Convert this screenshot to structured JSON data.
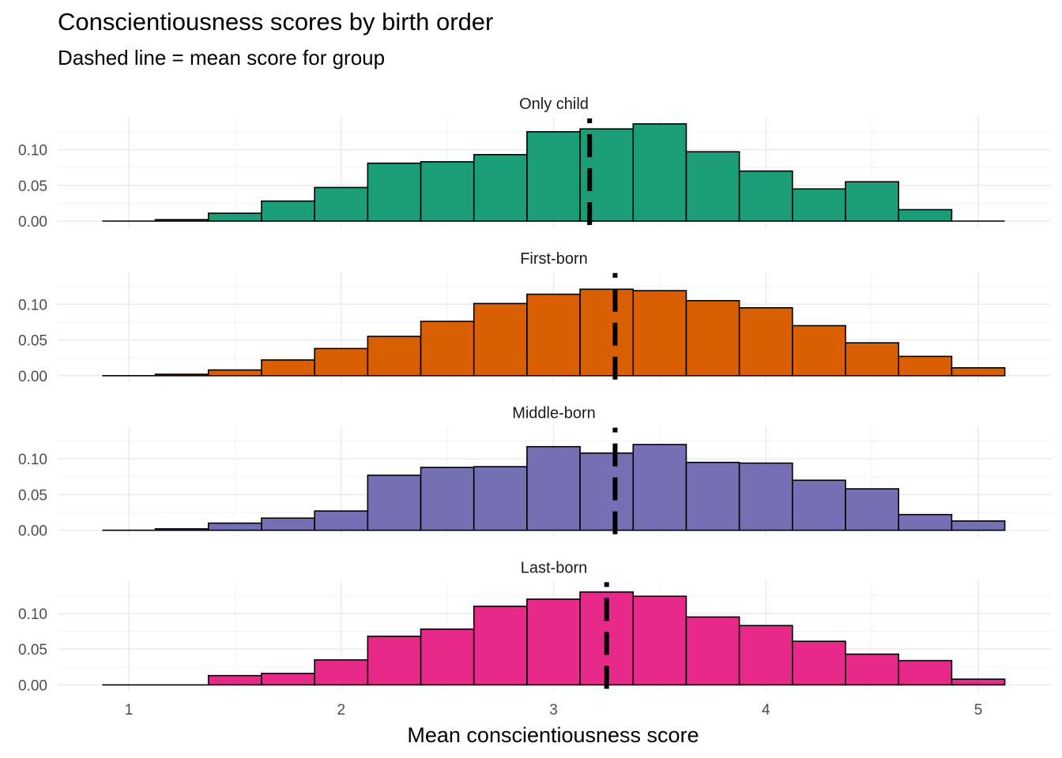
{
  "chart_data": {
    "type": "bar",
    "title": "Conscientiousness scores by birth order",
    "subtitle": "Dashed line = mean score for group",
    "xlabel": "Mean conscientiousness score",
    "xlim": [
      0.85,
      5.15
    ],
    "ylim": [
      0,
      0.14
    ],
    "x_ticks": [
      1,
      2,
      3,
      4,
      5
    ],
    "x_tick_labels": [
      "1",
      "2",
      "3",
      "4",
      "5"
    ],
    "y_ticks": [
      0,
      0.05,
      0.1
    ],
    "y_tick_labels": [
      "0.00",
      "0.05",
      "0.10"
    ],
    "grid": true,
    "bin_width": 0.25,
    "bin_centers": [
      1.0,
      1.25,
      1.5,
      1.75,
      2.0,
      2.25,
      2.5,
      2.75,
      3.0,
      3.25,
      3.5,
      3.75,
      4.0,
      4.25,
      4.5,
      4.75,
      5.0
    ],
    "panels": [
      {
        "name": "Only child",
        "color": "#1b9e77",
        "mean": 3.17,
        "values": [
          0.0,
          0.002,
          0.011,
          0.028,
          0.047,
          0.081,
          0.083,
          0.093,
          0.125,
          0.129,
          0.136,
          0.097,
          0.07,
          0.045,
          0.055,
          0.016,
          0.0
        ]
      },
      {
        "name": "First-born",
        "color": "#d95f02",
        "mean": 3.29,
        "values": [
          0.0,
          0.002,
          0.008,
          0.022,
          0.038,
          0.055,
          0.076,
          0.101,
          0.114,
          0.121,
          0.119,
          0.105,
          0.095,
          0.07,
          0.046,
          0.027,
          0.011
        ]
      },
      {
        "name": "Middle-born",
        "color": "#7570b3",
        "mean": 3.29,
        "values": [
          0.0,
          0.002,
          0.01,
          0.017,
          0.027,
          0.077,
          0.088,
          0.089,
          0.117,
          0.108,
          0.12,
          0.095,
          0.094,
          0.07,
          0.058,
          0.022,
          0.013
        ]
      },
      {
        "name": "Last-born",
        "color": "#e7298a",
        "mean": 3.25,
        "values": [
          0.0,
          0.0,
          0.013,
          0.016,
          0.035,
          0.068,
          0.078,
          0.11,
          0.12,
          0.13,
          0.124,
          0.095,
          0.083,
          0.061,
          0.043,
          0.034,
          0.008
        ]
      }
    ]
  }
}
